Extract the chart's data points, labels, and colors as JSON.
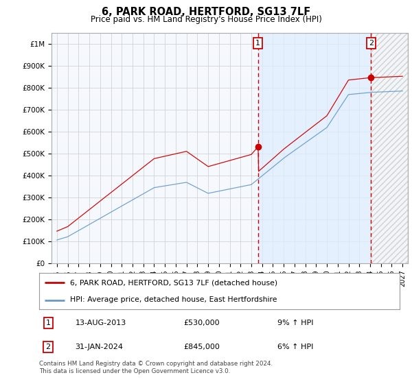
{
  "title": "6, PARK ROAD, HERTFORD, SG13 7LF",
  "subtitle": "Price paid vs. HM Land Registry's House Price Index (HPI)",
  "hpi_label": "HPI: Average price, detached house, East Hertfordshire",
  "property_label": "6, PARK ROAD, HERTFORD, SG13 7LF (detached house)",
  "property_color": "#cc0000",
  "hpi_color": "#6699cc",
  "shade_color": "#ddeeff",
  "hatch_color": "#bbbbbb",
  "grid_color": "#cccccc",
  "sale1": {
    "label": "1",
    "date": "13-AUG-2013",
    "price": "£530,000",
    "hpi": "9% ↑ HPI"
  },
  "sale2": {
    "label": "2",
    "date": "31-JAN-2024",
    "price": "£845,000",
    "hpi": "6% ↑ HPI"
  },
  "vline1_x": 2013.62,
  "vline2_x": 2024.08,
  "vline_color": "#cc0000",
  "marker1_price": 530000,
  "marker1_x": 2013.62,
  "marker2_price": 845000,
  "marker2_x": 2024.08,
  "ylim": [
    0,
    1050000
  ],
  "xlim_start": 1994.5,
  "xlim_end": 2027.5,
  "footer": "Contains HM Land Registry data © Crown copyright and database right 2024.\nThis data is licensed under the Open Government Licence v3.0.",
  "yticks": [
    0,
    100000,
    200000,
    300000,
    400000,
    500000,
    600000,
    700000,
    800000,
    900000,
    1000000
  ],
  "ytick_labels": [
    "£0",
    "£100K",
    "£200K",
    "£300K",
    "£400K",
    "£500K",
    "£600K",
    "£700K",
    "£800K",
    "£900K",
    "£1M"
  ],
  "xticks": [
    1995,
    1996,
    1997,
    1998,
    1999,
    2000,
    2001,
    2002,
    2003,
    2004,
    2005,
    2006,
    2007,
    2008,
    2009,
    2010,
    2011,
    2012,
    2013,
    2014,
    2015,
    2016,
    2017,
    2018,
    2019,
    2020,
    2021,
    2022,
    2023,
    2024,
    2025,
    2026,
    2027
  ]
}
